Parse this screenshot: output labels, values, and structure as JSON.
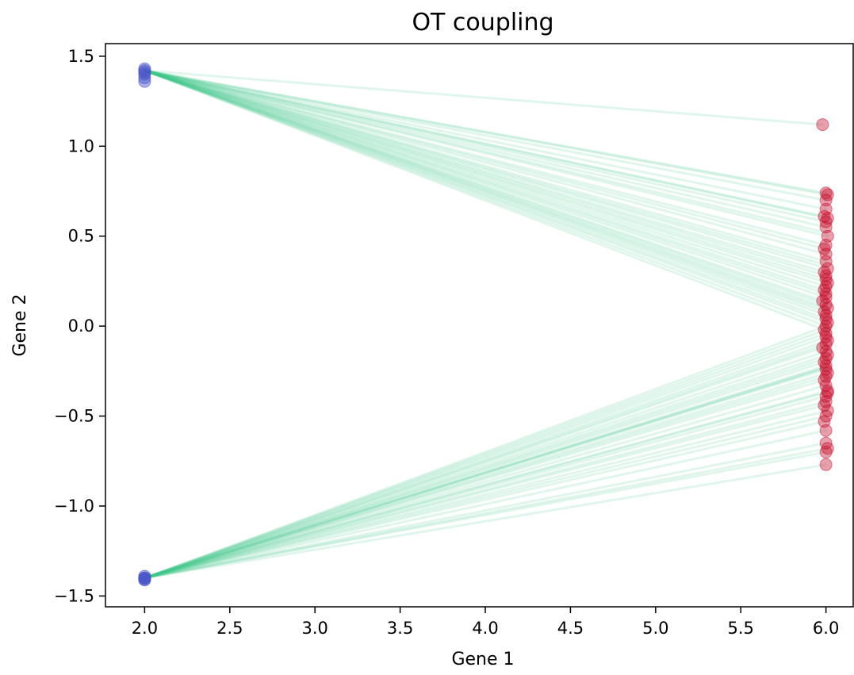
{
  "chart_data": {
    "type": "scatter",
    "title": "OT coupling",
    "xlabel": "Gene 1",
    "ylabel": "Gene 2",
    "xlim": [
      1.77,
      6.16
    ],
    "ylim": [
      -1.56,
      1.57
    ],
    "xticks": [
      2.0,
      2.5,
      3.0,
      3.5,
      4.0,
      4.5,
      5.0,
      5.5,
      6.0
    ],
    "xtick_labels": [
      "2.0",
      "2.5",
      "3.0",
      "3.5",
      "4.0",
      "4.5",
      "5.0",
      "5.5",
      "6.0"
    ],
    "yticks": [
      -1.5,
      -1.0,
      -0.5,
      0.0,
      0.5,
      1.0,
      1.5
    ],
    "ytick_labels": [
      "−1.5",
      "−1.0",
      "−0.5",
      "0.0",
      "0.5",
      "1.0",
      "1.5"
    ],
    "grid": false,
    "legend": "none",
    "colors": {
      "source": "#4a55c8",
      "target": "#c8102e",
      "coupling": "#3cc98a"
    },
    "source_points": {
      "x": [
        2.0,
        2.0,
        2.0,
        2.0,
        2.0,
        2.0,
        2.0,
        2.0,
        2.0,
        2.0,
        2.0,
        2.0
      ],
      "y": [
        1.43,
        1.42,
        1.4,
        1.38,
        1.36,
        1.41,
        -1.4,
        -1.4,
        -1.41,
        -1.4,
        -1.39,
        -1.41
      ]
    },
    "target_points": {
      "x": [
        5.98,
        6.0,
        6.01,
        6.0,
        5.99,
        6.01,
        6.0,
        6.0,
        6.01,
        6.0,
        5.99,
        6.0,
        6.0,
        6.01,
        5.99,
        6.0,
        6.0,
        6.01,
        6.0,
        5.99,
        6.0,
        6.0,
        5.98,
        6.0,
        6.01,
        5.99,
        6.0,
        6.0,
        6.01,
        6.0,
        5.99,
        6.0,
        6.0,
        6.01,
        6.0,
        5.98,
        6.0,
        6.01,
        6.0,
        5.99,
        6.0,
        6.0,
        6.01,
        6.0,
        5.99,
        6.0,
        6.01,
        6.0,
        6.0,
        5.99,
        6.01,
        6.0,
        5.99,
        6.0,
        6.0,
        6.01,
        6.0,
        6.0,
        6.0,
        6.01
      ],
      "y": [
        1.12,
        0.74,
        0.73,
        0.7,
        0.61,
        0.6,
        0.58,
        0.55,
        0.5,
        0.45,
        0.43,
        0.4,
        0.36,
        0.32,
        0.3,
        0.28,
        0.26,
        0.24,
        0.22,
        0.2,
        0.18,
        0.16,
        0.14,
        0.12,
        0.1,
        0.08,
        0.06,
        0.04,
        0.02,
        0.0,
        -0.02,
        -0.04,
        -0.06,
        -0.08,
        -0.1,
        -0.12,
        -0.14,
        -0.16,
        -0.18,
        -0.2,
        -0.22,
        -0.24,
        -0.26,
        -0.28,
        -0.3,
        -0.33,
        -0.36,
        -0.39,
        -0.42,
        -0.44,
        -0.47,
        -0.5,
        -0.53,
        -0.58,
        -0.65,
        -0.68,
        -0.7,
        -0.77,
        0.65,
        -0.37
      ]
    },
    "couplings": [
      {
        "from": [
          2.0,
          1.42
        ],
        "to": [
          5.98,
          1.12
        ]
      },
      {
        "from": [
          2.0,
          1.42
        ],
        "to": [
          6.0,
          0.74
        ]
      },
      {
        "from": [
          2.0,
          1.42
        ],
        "to": [
          6.01,
          0.73
        ]
      },
      {
        "from": [
          2.0,
          1.42
        ],
        "to": [
          6.0,
          0.7
        ]
      },
      {
        "from": [
          2.0,
          1.42
        ],
        "to": [
          5.99,
          0.61
        ]
      },
      {
        "from": [
          2.0,
          1.42
        ],
        "to": [
          6.01,
          0.6
        ]
      },
      {
        "from": [
          2.0,
          1.42
        ],
        "to": [
          6.0,
          0.58
        ]
      },
      {
        "from": [
          2.0,
          1.42
        ],
        "to": [
          6.0,
          0.55
        ]
      },
      {
        "from": [
          2.0,
          1.42
        ],
        "to": [
          6.01,
          0.5
        ]
      },
      {
        "from": [
          2.0,
          1.42
        ],
        "to": [
          6.0,
          0.45
        ]
      },
      {
        "from": [
          2.0,
          1.42
        ],
        "to": [
          5.99,
          0.43
        ]
      },
      {
        "from": [
          2.0,
          1.42
        ],
        "to": [
          6.0,
          0.4
        ]
      },
      {
        "from": [
          2.0,
          1.42
        ],
        "to": [
          6.0,
          0.36
        ]
      },
      {
        "from": [
          2.0,
          1.42
        ],
        "to": [
          6.01,
          0.32
        ]
      },
      {
        "from": [
          2.0,
          1.42
        ],
        "to": [
          5.99,
          0.3
        ]
      },
      {
        "from": [
          2.0,
          1.42
        ],
        "to": [
          6.0,
          0.28
        ]
      },
      {
        "from": [
          2.0,
          1.42
        ],
        "to": [
          6.0,
          0.26
        ]
      },
      {
        "from": [
          2.0,
          1.42
        ],
        "to": [
          6.01,
          0.24
        ]
      },
      {
        "from": [
          2.0,
          1.42
        ],
        "to": [
          6.0,
          0.22
        ]
      },
      {
        "from": [
          2.0,
          1.42
        ],
        "to": [
          5.99,
          0.2
        ]
      },
      {
        "from": [
          2.0,
          1.42
        ],
        "to": [
          6.0,
          0.18
        ]
      },
      {
        "from": [
          2.0,
          1.42
        ],
        "to": [
          6.0,
          0.16
        ]
      },
      {
        "from": [
          2.0,
          1.42
        ],
        "to": [
          5.98,
          0.14
        ]
      },
      {
        "from": [
          2.0,
          1.42
        ],
        "to": [
          6.0,
          0.12
        ]
      },
      {
        "from": [
          2.0,
          1.42
        ],
        "to": [
          6.01,
          0.1
        ]
      },
      {
        "from": [
          2.0,
          1.42
        ],
        "to": [
          5.99,
          0.08
        ]
      },
      {
        "from": [
          2.0,
          1.42
        ],
        "to": [
          6.0,
          0.06
        ]
      },
      {
        "from": [
          2.0,
          1.42
        ],
        "to": [
          6.0,
          0.04
        ]
      },
      {
        "from": [
          2.0,
          1.42
        ],
        "to": [
          6.01,
          0.02
        ]
      },
      {
        "from": [
          2.0,
          1.42
        ],
        "to": [
          6.0,
          0.0
        ]
      },
      {
        "from": [
          2.0,
          1.42
        ],
        "to": [
          5.99,
          -0.02
        ]
      },
      {
        "from": [
          2.0,
          1.42
        ],
        "to": [
          6.0,
          0.65
        ]
      },
      {
        "from": [
          2.0,
          1.42
        ],
        "to": [
          6.0,
          0.52
        ]
      },
      {
        "from": [
          2.0,
          1.42
        ],
        "to": [
          6.0,
          0.34
        ]
      },
      {
        "from": [
          2.0,
          1.42
        ],
        "to": [
          6.0,
          0.09
        ]
      },
      {
        "from": [
          2.0,
          -1.4
        ],
        "to": [
          6.0,
          -0.02
        ]
      },
      {
        "from": [
          2.0,
          -1.4
        ],
        "to": [
          6.0,
          -0.04
        ]
      },
      {
        "from": [
          2.0,
          -1.4
        ],
        "to": [
          6.0,
          -0.06
        ]
      },
      {
        "from": [
          2.0,
          -1.4
        ],
        "to": [
          6.01,
          -0.08
        ]
      },
      {
        "from": [
          2.0,
          -1.4
        ],
        "to": [
          6.0,
          -0.1
        ]
      },
      {
        "from": [
          2.0,
          -1.4
        ],
        "to": [
          5.98,
          -0.12
        ]
      },
      {
        "from": [
          2.0,
          -1.4
        ],
        "to": [
          6.0,
          -0.14
        ]
      },
      {
        "from": [
          2.0,
          -1.4
        ],
        "to": [
          6.01,
          -0.16
        ]
      },
      {
        "from": [
          2.0,
          -1.4
        ],
        "to": [
          6.0,
          -0.18
        ]
      },
      {
        "from": [
          2.0,
          -1.4
        ],
        "to": [
          5.99,
          -0.2
        ]
      },
      {
        "from": [
          2.0,
          -1.4
        ],
        "to": [
          6.0,
          -0.22
        ]
      },
      {
        "from": [
          2.0,
          -1.4
        ],
        "to": [
          6.0,
          -0.24
        ]
      },
      {
        "from": [
          2.0,
          -1.4
        ],
        "to": [
          6.01,
          -0.26
        ]
      },
      {
        "from": [
          2.0,
          -1.4
        ],
        "to": [
          6.0,
          -0.28
        ]
      },
      {
        "from": [
          2.0,
          -1.4
        ],
        "to": [
          5.99,
          -0.3
        ]
      },
      {
        "from": [
          2.0,
          -1.4
        ],
        "to": [
          6.0,
          -0.33
        ]
      },
      {
        "from": [
          2.0,
          -1.4
        ],
        "to": [
          6.01,
          -0.36
        ]
      },
      {
        "from": [
          2.0,
          -1.4
        ],
        "to": [
          6.0,
          -0.39
        ]
      },
      {
        "from": [
          2.0,
          -1.4
        ],
        "to": [
          6.0,
          -0.42
        ]
      },
      {
        "from": [
          2.0,
          -1.4
        ],
        "to": [
          5.99,
          -0.44
        ]
      },
      {
        "from": [
          2.0,
          -1.4
        ],
        "to": [
          6.01,
          -0.47
        ]
      },
      {
        "from": [
          2.0,
          -1.4
        ],
        "to": [
          6.0,
          -0.5
        ]
      },
      {
        "from": [
          2.0,
          -1.4
        ],
        "to": [
          5.99,
          -0.53
        ]
      },
      {
        "from": [
          2.0,
          -1.4
        ],
        "to": [
          6.0,
          -0.58
        ]
      },
      {
        "from": [
          2.0,
          -1.4
        ],
        "to": [
          6.0,
          -0.65
        ]
      },
      {
        "from": [
          2.0,
          -1.4
        ],
        "to": [
          6.01,
          -0.68
        ]
      },
      {
        "from": [
          2.0,
          -1.4
        ],
        "to": [
          6.0,
          -0.7
        ]
      },
      {
        "from": [
          2.0,
          -1.4
        ],
        "to": [
          6.0,
          -0.77
        ]
      },
      {
        "from": [
          2.0,
          -1.4
        ],
        "to": [
          6.0,
          -0.37
        ]
      },
      {
        "from": [
          2.0,
          -1.4
        ],
        "to": [
          6.0,
          -0.23
        ]
      },
      {
        "from": [
          2.0,
          -1.4
        ],
        "to": [
          6.0,
          -0.23
        ]
      },
      {
        "from": [
          2.0,
          -1.4
        ],
        "to": [
          6.0,
          0.0
        ]
      }
    ]
  }
}
